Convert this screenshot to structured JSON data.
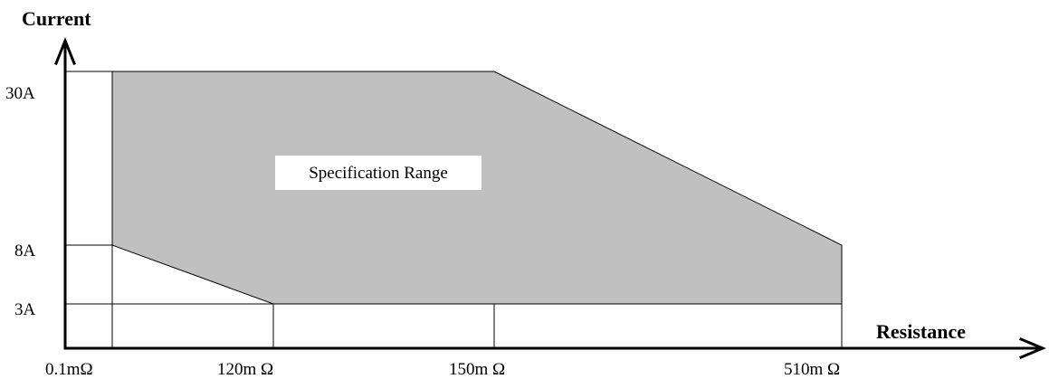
{
  "diagram": {
    "y_axis_title": "Current",
    "x_axis_title": "Resistance",
    "region_label": "Specification Range",
    "region_color": "#c0c0c0",
    "x_ticks": [
      "0.1mΩ",
      "120m Ω",
      "150m Ω",
      "510m Ω"
    ],
    "y_ticks": [
      "30A",
      "8A",
      "3A"
    ]
  }
}
